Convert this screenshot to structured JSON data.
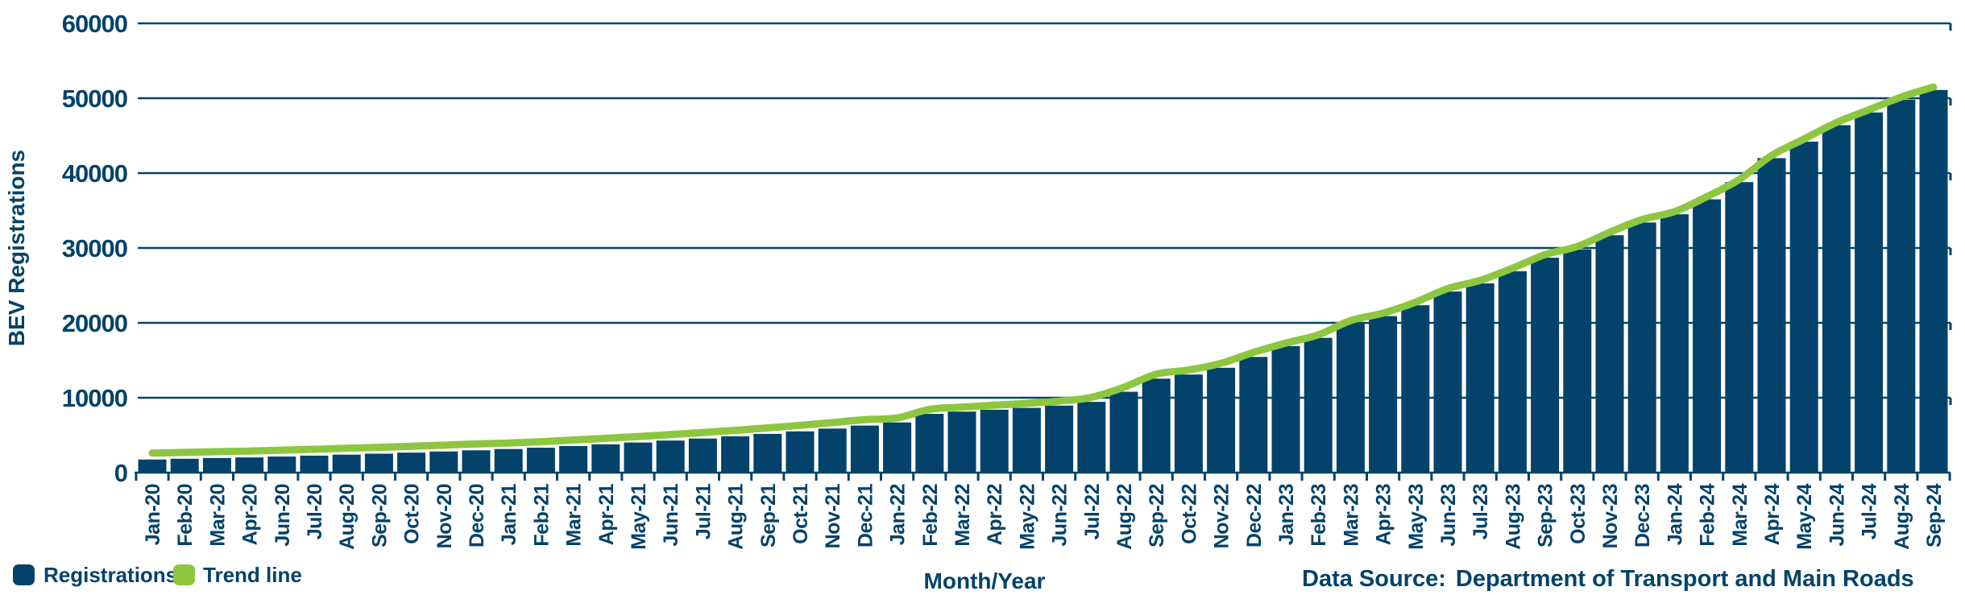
{
  "chart_data": {
    "type": "bar",
    "title": "",
    "xlabel": "Month/Year",
    "ylabel": "BEV Registrations",
    "ylim": [
      0,
      60000
    ],
    "ytick_step": 10000,
    "yticks": [
      "0",
      "10000",
      "20000",
      "30000",
      "40000",
      "50000",
      "60000"
    ],
    "grid": true,
    "legend_position": "bottom-left",
    "categories": [
      "Jan-20",
      "Feb-20",
      "Mar-20",
      "Apr-20",
      "Jun-20",
      "Jul-20",
      "Aug-20",
      "Sep-20",
      "Oct-20",
      "Nov-20",
      "Dec-20",
      "Jan-21",
      "Feb-21",
      "Mar-21",
      "Apr-21",
      "May-21",
      "Jun-21",
      "Jul-21",
      "Aug-21",
      "Sep-21",
      "Oct-21",
      "Nov-21",
      "Dec-21",
      "Jan-22",
      "Feb-22",
      "Mar-22",
      "Apr-22",
      "May-22",
      "Jun-22",
      "Jul-22",
      "Aug-22",
      "Sep-22",
      "Oct-22",
      "Nov-22",
      "Dec-22",
      "Jan-23",
      "Feb-23",
      "Mar-23",
      "Apr-23",
      "May-23",
      "Jun-23",
      "Jul-23",
      "Aug-23",
      "Sep-23",
      "Oct-23",
      "Nov-23",
      "Dec-23",
      "Jan-24",
      "Feb-24",
      "Mar-24",
      "Apr-24",
      "May-24",
      "Jun-24",
      "Jul-24",
      "Aug-24",
      "Sep-24"
    ],
    "series": [
      {
        "name": "Registrations",
        "type": "bar",
        "color": "#02426B",
        "values": [
          1750,
          1850,
          1950,
          2030,
          2150,
          2270,
          2400,
          2530,
          2670,
          2820,
          2980,
          3150,
          3330,
          3550,
          3780,
          4020,
          4280,
          4550,
          4850,
          5170,
          5510,
          5880,
          6280,
          6700,
          7850,
          8150,
          8400,
          8650,
          8950,
          9450,
          10800,
          12550,
          13100,
          14000,
          15450,
          16900,
          18000,
          19900,
          20900,
          22350,
          24180,
          25270,
          26900,
          28700,
          29800,
          31700,
          33400,
          34500,
          36500,
          38800,
          42000,
          44200,
          46400,
          48100,
          49800,
          51100
        ]
      },
      {
        "name": "Trend line",
        "type": "line",
        "color": "#8DC63F",
        "values": [
          2600,
          2700,
          2800,
          2880,
          3000,
          3120,
          3250,
          3380,
          3520,
          3670,
          3830,
          3950,
          4130,
          4350,
          4580,
          4820,
          5080,
          5350,
          5650,
          5970,
          6310,
          6680,
          7080,
          7300,
          8450,
          8750,
          9000,
          9250,
          9550,
          10050,
          11400,
          13150,
          13700,
          14600,
          16050,
          17300,
          18400,
          20300,
          21300,
          22750,
          24580,
          25670,
          27300,
          29100,
          30200,
          32100,
          33800,
          34850,
          36850,
          39150,
          42350,
          44550,
          46750,
          48450,
          50150,
          51500
        ]
      }
    ]
  },
  "footer": {
    "data_source_label": "Data Source:",
    "data_source_value": "Department of Transport and Main Roads"
  },
  "colors": {
    "navy": "#02426B",
    "green": "#8DC63F",
    "background": "#FFFFFF"
  }
}
